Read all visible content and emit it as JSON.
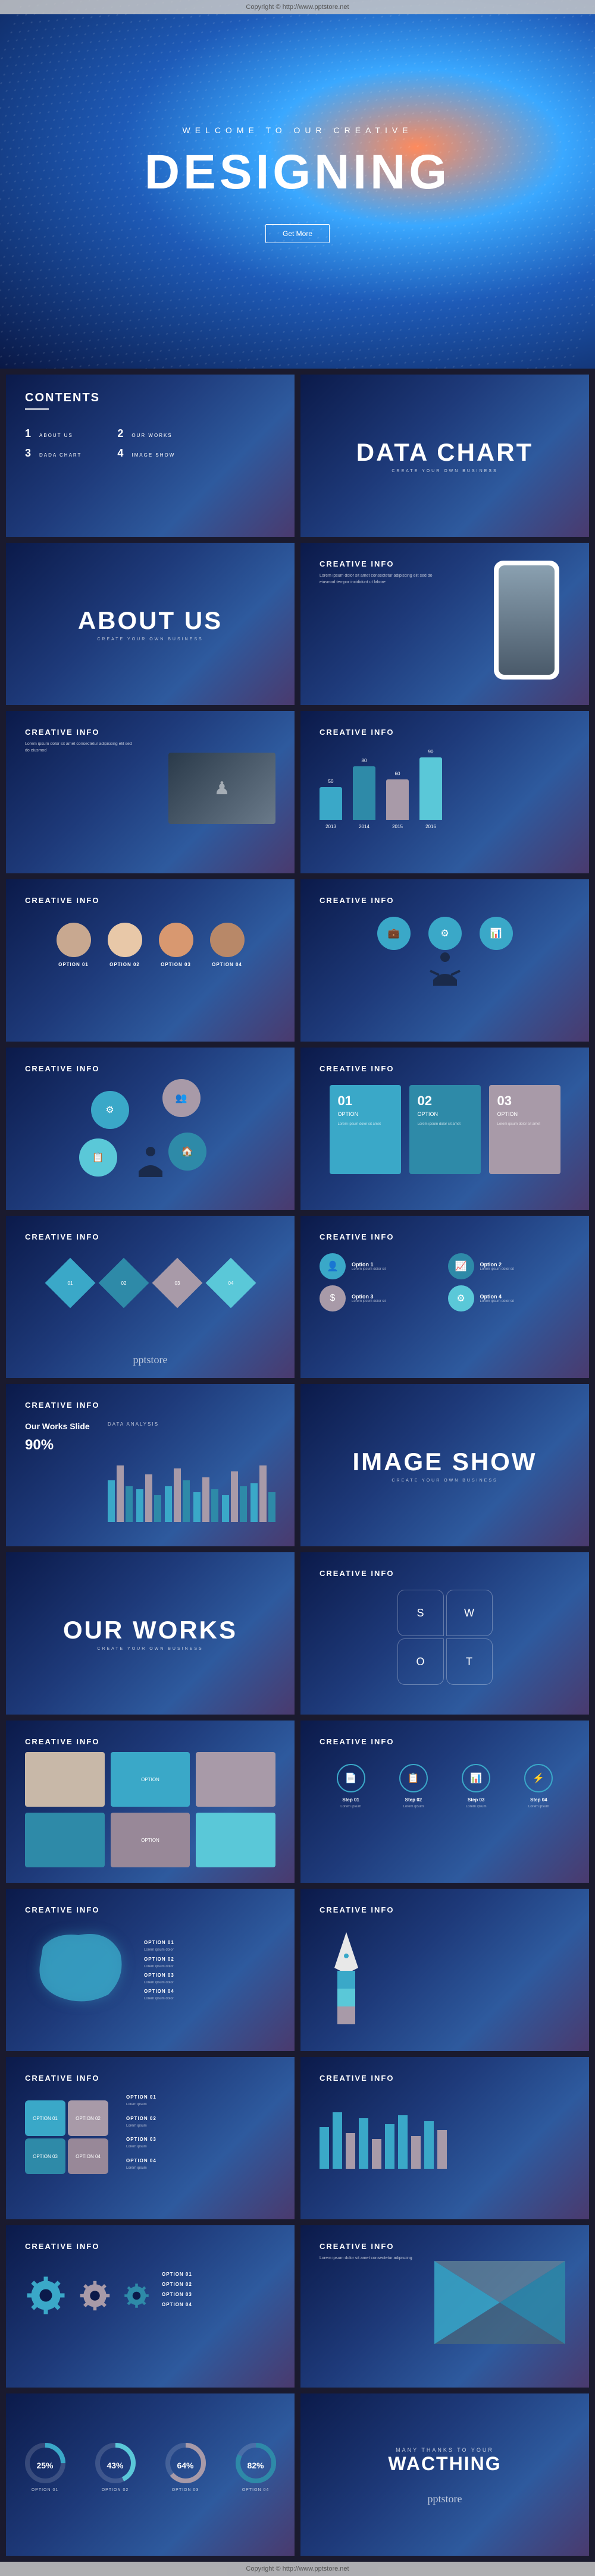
{
  "watermark": "Copyright © http://www.pptstore.net",
  "hero": {
    "subtitle": "WELCOME TO OUR CREATIVE",
    "title": "DESIGNING",
    "button": "Get More",
    "bg_colors": [
      "#ff8a5c",
      "#3aa8ff",
      "#1e5bb8",
      "#0a1845"
    ]
  },
  "slides": {
    "contents": {
      "title": "CONTENTS",
      "items": [
        {
          "num": "1",
          "label": "ABOUT US"
        },
        {
          "num": "2",
          "label": "OUR WORKS"
        },
        {
          "num": "3",
          "label": "DADA CHART"
        },
        {
          "num": "4",
          "label": "IMAGE SHOW"
        }
      ]
    },
    "datachart": {
      "title": "DATA CHART",
      "sub": "CREATE YOUR OWN BUSINESS"
    },
    "aboutus_sec": {
      "title": "ABOUT US",
      "sub": "CREATE YOUR OWN BUSINESS"
    },
    "mockup": {
      "title": "CREATIVE INFO",
      "lorem": "Lorem ipsum dolor sit amet consectetur adipiscing elit sed do eiusmod tempor incididunt ut labore"
    },
    "creative_title": "CREATIVE INFO",
    "chess": {
      "title": "CREATIVE INFO",
      "lorem": "Lorem ipsum dolor sit amet consectetur adipiscing elit sed do eiusmod"
    },
    "barchart": {
      "title": "CREATIVE INFO",
      "bars": [
        {
          "year": "2013",
          "val": "50",
          "h": 55,
          "color": "#3aa8c8"
        },
        {
          "year": "2014",
          "val": "80",
          "h": 90,
          "color": "#2e8aa8"
        },
        {
          "year": "2015",
          "val": "60",
          "h": 68,
          "color": "#a89aa8"
        },
        {
          "year": "2016",
          "val": "90",
          "h": 105,
          "color": "#5ac8d8"
        }
      ]
    },
    "team": {
      "title": "CREATIVE INFO",
      "members": [
        {
          "name": "OPTION 01",
          "color": "#c8a890"
        },
        {
          "name": "OPTION 02",
          "color": "#e8c8a8"
        },
        {
          "name": "OPTION 03",
          "color": "#d89870"
        },
        {
          "name": "OPTION 04",
          "color": "#b88868"
        }
      ]
    },
    "iconhuman": {
      "title": "CREATIVE INFO",
      "icons": [
        {
          "glyph": "💼",
          "color": "#3aa8c8"
        },
        {
          "glyph": "⚙",
          "color": "#3aa8c8"
        },
        {
          "glyph": "📊",
          "color": "#3aa8c8"
        }
      ]
    },
    "bubbles": {
      "title": "CREATIVE INFO",
      "items": [
        {
          "glyph": "⚙",
          "color": "#3aa8c8"
        },
        {
          "glyph": "👥",
          "color": "#a89aa8"
        },
        {
          "glyph": "📋",
          "color": "#5ac8d8"
        },
        {
          "glyph": "🏠",
          "color": "#2e8aa8"
        }
      ]
    },
    "boxes3": {
      "title": "CREATIVE INFO",
      "items": [
        {
          "num": "01",
          "name": "OPTION",
          "color": "#3aa8c8",
          "desc": "Lorem ipsum dolor sit amet"
        },
        {
          "num": "02",
          "name": "OPTION",
          "color": "#2e8aa8",
          "desc": "Lorem ipsum dolor sit amet"
        },
        {
          "num": "03",
          "name": "OPTION",
          "color": "#a89aa8",
          "desc": "Lorem ipsum dolor sit amet"
        }
      ]
    },
    "diamonds": {
      "title": "CREATIVE INFO",
      "items": [
        {
          "label": "01",
          "color": "#3aa8c8"
        },
        {
          "label": "02",
          "color": "#2e8aa8"
        },
        {
          "label": "03",
          "color": "#a89aa8"
        },
        {
          "label": "04",
          "color": "#5ac8d8"
        }
      ]
    },
    "opts4": {
      "title": "CREATIVE INFO",
      "items": [
        {
          "glyph": "👤",
          "name": "Option 1",
          "desc": "Lorem ipsum dolor sit",
          "color": "#3aa8c8"
        },
        {
          "glyph": "📈",
          "name": "Option 2",
          "desc": "Lorem ipsum dolor sit",
          "color": "#2e8aa8"
        },
        {
          "glyph": "$",
          "name": "Option 3",
          "desc": "Lorem ipsum dolor sit",
          "color": "#a89aa8"
        },
        {
          "glyph": "⚙",
          "name": "Option 4",
          "desc": "Lorem ipsum dolor sit",
          "color": "#5ac8d8"
        }
      ]
    },
    "smallbars": {
      "title": "CREATIVE INFO",
      "subtitle": "Our Works Slide",
      "pct": "90%",
      "label": "DATA ANALYSIS",
      "groups": [
        [
          70,
          95,
          60
        ],
        [
          55,
          80,
          45
        ],
        [
          60,
          90,
          70
        ],
        [
          50,
          75,
          55
        ],
        [
          45,
          85,
          60
        ],
        [
          65,
          95,
          50
        ]
      ],
      "colors": [
        "#3aa8c8",
        "#a89aa8",
        "#2e8aa8"
      ]
    },
    "imageshow": {
      "title": "IMAGE SHOW",
      "sub": "CREATE YOUR OWN BUSINESS"
    },
    "ourworks": {
      "title": "OUR WORKS",
      "sub": "CREATE YOUR OWN BUSINESS"
    },
    "swot": {
      "title": "CREATIVE INFO",
      "labels": [
        "S",
        "W",
        "O",
        "T"
      ]
    },
    "grid6": {
      "title": "CREATIVE INFO",
      "cells": [
        {
          "color": "#c8b8a8",
          "label": ""
        },
        {
          "color": "#3aa8c8",
          "label": "OPTION"
        },
        {
          "color": "#a89aa8",
          "label": ""
        },
        {
          "color": "#2e8aa8",
          "label": ""
        },
        {
          "color": "#988898",
          "label": "OPTION"
        },
        {
          "color": "#5ac8d8",
          "label": ""
        }
      ]
    },
    "steps": {
      "title": "CREATIVE INFO",
      "items": [
        {
          "glyph": "📄",
          "name": "Step 01",
          "desc": "Lorem ipsum"
        },
        {
          "glyph": "📋",
          "name": "Step 02",
          "desc": "Lorem ipsum"
        },
        {
          "glyph": "📊",
          "name": "Step 03",
          "desc": "Lorem ipsum"
        },
        {
          "glyph": "⚡",
          "name": "Step 04",
          "desc": "Lorem ipsum"
        }
      ]
    },
    "china": {
      "title": "CREATIVE INFO",
      "opts": [
        "OPTION 01",
        "OPTION 02",
        "OPTION 03",
        "OPTION 04"
      ],
      "map_color": "#3aa8c8"
    },
    "pen": {
      "title": "CREATIVE INFO",
      "colors": [
        "#3aa8c8",
        "#5ac8d8",
        "#a89aa8"
      ]
    },
    "puzzle": {
      "title": "CREATIVE INFO",
      "pieces": [
        {
          "label": "OPTION 01",
          "color": "#3aa8c8"
        },
        {
          "label": "OPTION 02",
          "color": "#a89aa8"
        },
        {
          "label": "OPTION 03",
          "color": "#2e8aa8"
        },
        {
          "label": "OPTION 04",
          "color": "#988898"
        }
      ]
    },
    "bar2ch": {
      "title": "CREATIVE INFO",
      "bars": [
        {
          "h": 70,
          "c": "#3aa8c8"
        },
        {
          "h": 95,
          "c": "#3aa8c8"
        },
        {
          "h": 60,
          "c": "#a89aa8"
        },
        {
          "h": 85,
          "c": "#3aa8c8"
        },
        {
          "h": 50,
          "c": "#a89aa8"
        },
        {
          "h": 75,
          "c": "#3aa8c8"
        },
        {
          "h": 90,
          "c": "#3aa8c8"
        },
        {
          "h": 55,
          "c": "#a89aa8"
        },
        {
          "h": 80,
          "c": "#3aa8c8"
        },
        {
          "h": 65,
          "c": "#a89aa8"
        }
      ]
    },
    "gears": {
      "title": "CREATIVE INFO",
      "items": [
        {
          "size": 70,
          "color": "#3aa8c8"
        },
        {
          "size": 55,
          "color": "#a89aa8"
        },
        {
          "size": 45,
          "color": "#2e8aa8"
        }
      ],
      "opts": [
        "OPTION 01",
        "OPTION 02",
        "OPTION 03",
        "OPTION 04"
      ]
    },
    "cross": {
      "title": "CREATIVE INFO",
      "lorem": "Lorem ipsum dolor sit amet consectetur adipiscing"
    },
    "donuts": {
      "items": [
        {
          "pct": 25,
          "label": "OPTION 01",
          "color": "#3aa8c8"
        },
        {
          "pct": 43,
          "label": "OPTION 02",
          "color": "#5ac8d8"
        },
        {
          "pct": 64,
          "label": "OPTION 03",
          "color": "#a89aa8"
        },
        {
          "pct": 82,
          "label": "OPTION 04",
          "color": "#2e8aa8"
        }
      ]
    },
    "thanks": {
      "sub": "MANY THANKS TO YOUR",
      "title": "WACTHING",
      "signature": "pptstore"
    }
  },
  "colors": {
    "bg_dark": "#0b1a4a",
    "bg_mid": "#1e3a7a",
    "accent": "#3aa8c8",
    "muted": "#a89aa8"
  }
}
